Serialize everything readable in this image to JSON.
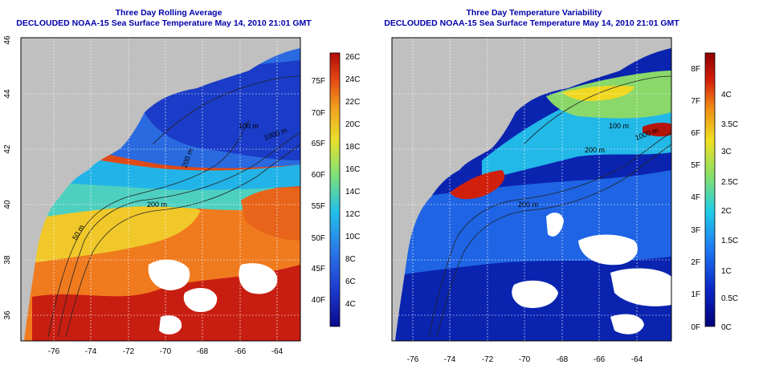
{
  "panels": [
    {
      "id": "left",
      "title_line1": "Three Day Rolling Average",
      "title_line2": "DECLOUDED NOAA-15 Sea Surface Temperature May 14, 2010 21:01 GMT",
      "lon_ticks": [
        "-76",
        "-74",
        "-72",
        "-70",
        "-68",
        "-66",
        "-64"
      ],
      "lat_ticks": [
        "36",
        "38",
        "40",
        "42",
        "44",
        "46"
      ],
      "contour_labels": [
        "50 m",
        "200 m",
        "200 m",
        "1000 m",
        "100 m"
      ],
      "colorbar_c_labels": [
        "26C",
        "24C",
        "22C",
        "20C",
        "18C",
        "16C",
        "14C",
        "12C",
        "10C",
        "8C",
        "6C",
        "4C"
      ],
      "colorbar_f_labels": [
        "75F",
        "70F",
        "65F",
        "60F",
        "55F",
        "50F",
        "45F",
        "40F"
      ]
    },
    {
      "id": "right",
      "title_line1": "Three Day Temperature Variability",
      "title_line2": "DECLOUDED NOAA-15 Sea Surface Temperature May 14, 2010 21:01 GMT",
      "lon_ticks": [
        "-76",
        "-74",
        "-72",
        "-70",
        "-68",
        "-66",
        "-64"
      ],
      "lat_ticks": [],
      "contour_labels": [
        "200 m",
        "200 m",
        "1000 m",
        "100 m"
      ],
      "colorbar_c_labels": [
        "4C",
        "3.5C",
        "3C",
        "2.5C",
        "2C",
        "1.5C",
        "1C",
        "0.5C",
        "0C"
      ],
      "colorbar_f_labels": [
        "8F",
        "7F",
        "6F",
        "5F",
        "4F",
        "3F",
        "2F",
        "1F",
        "0F"
      ]
    }
  ],
  "colors": {
    "land": "#c0c0c0",
    "title": "#0000aa",
    "sst_scale": [
      "#0a0a8c",
      "#1e3cd2",
      "#2a7ae8",
      "#22c0ea",
      "#7ce07a",
      "#e8e02c",
      "#f2a01e",
      "#e44a14",
      "#b40a0a"
    ],
    "var_scale": [
      "#00007a",
      "#0a28c8",
      "#1e78f0",
      "#1ecce8",
      "#86e06a",
      "#f0e020",
      "#f08c14",
      "#d41e0a",
      "#900000"
    ]
  }
}
